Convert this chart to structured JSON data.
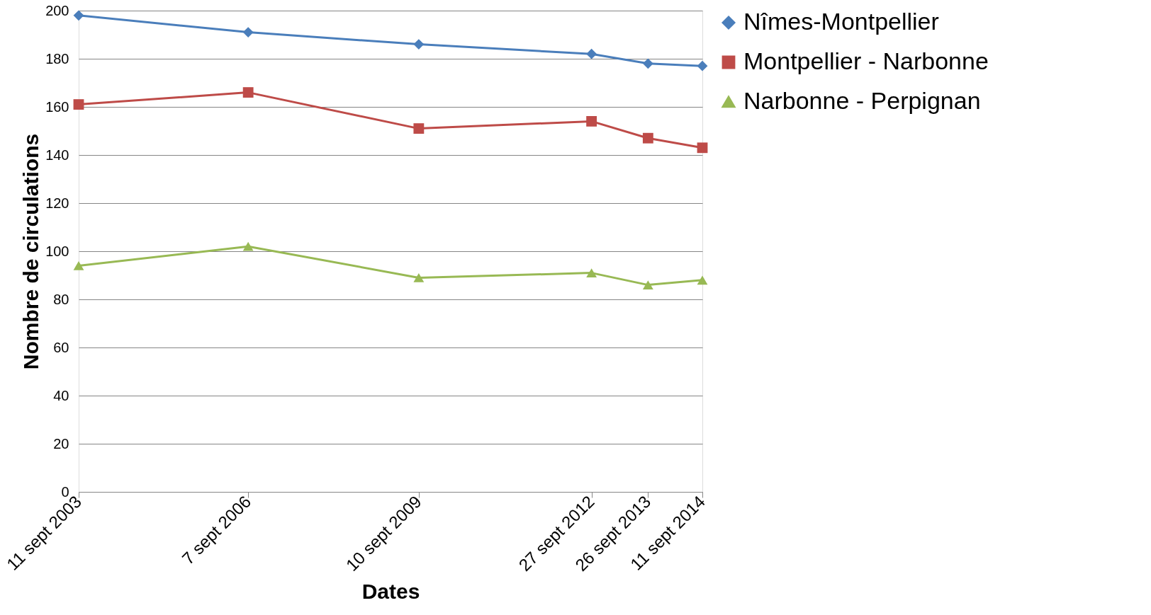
{
  "chart_data": {
    "type": "line",
    "xlabel": "Dates",
    "ylabel": "Nombre de circulations",
    "x": [
      "2003-09-11",
      "2006-09-07",
      "2009-09-10",
      "2012-09-27",
      "2013-09-26",
      "2014-09-11"
    ],
    "xlim": [
      "2003-09-11",
      "2014-09-11"
    ],
    "xticks": [
      {
        "value": "2003-09-11",
        "label": "11 sept 2003"
      },
      {
        "value": "2006-09-07",
        "label": "7 sept 2006"
      },
      {
        "value": "2009-09-10",
        "label": "10 sept 2009"
      },
      {
        "value": "2012-09-27",
        "label": "27 sept 2012"
      },
      {
        "value": "2013-09-26",
        "label": "26 sept 2013"
      },
      {
        "value": "2014-09-11",
        "label": "11 sept 2014"
      }
    ],
    "ylim": [
      0,
      200
    ],
    "yticks": [
      0,
      20,
      40,
      60,
      80,
      100,
      120,
      140,
      160,
      180,
      200
    ],
    "grid": "y",
    "legend": "right",
    "line_style": "solid",
    "series": [
      {
        "name": "Nîmes-Montpellier",
        "color": "#4a7ebb",
        "marker": "diamond",
        "values": [
          198,
          191,
          186,
          182,
          178,
          177
        ]
      },
      {
        "name": "Montpellier - Narbonne",
        "color": "#be4b48",
        "marker": "square",
        "values": [
          161,
          166,
          151,
          154,
          147,
          143
        ]
      },
      {
        "name": "Narbonne - Perpignan",
        "color": "#98b954",
        "marker": "triangle",
        "values": [
          94,
          102,
          89,
          91,
          86,
          88
        ]
      }
    ]
  }
}
